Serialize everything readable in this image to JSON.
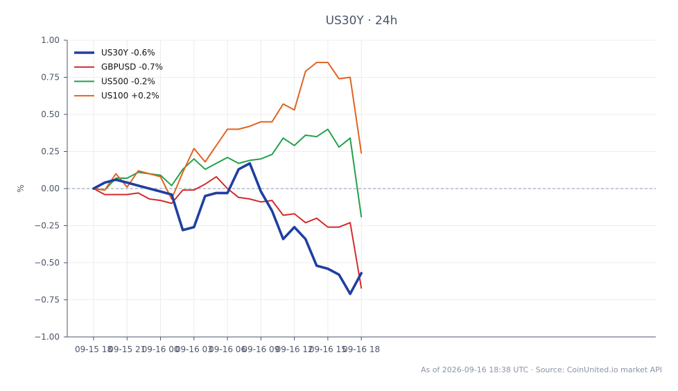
{
  "chart_data": {
    "type": "line",
    "title": "US30Y · 24h",
    "xlabel": "",
    "ylabel": "%",
    "ylim": [
      -1.0,
      1.0
    ],
    "yticks": [
      "1.00",
      "0.75",
      "0.50",
      "0.25",
      "0.00",
      "−0.25",
      "−0.50",
      "−0.75",
      "−1.00"
    ],
    "xticks": [
      "09-15 18",
      "09-15 21",
      "09-16 00",
      "09-16 03",
      "09-16 06",
      "09-16 09",
      "09-16 12",
      "09-16 15",
      "09-16 18"
    ],
    "x_hours": [
      "09-15 18",
      "09-15 19",
      "09-15 20",
      "09-15 21",
      "09-15 22",
      "09-15 23",
      "09-16 00",
      "09-16 01",
      "09-16 02",
      "09-16 03",
      "09-16 04",
      "09-16 05",
      "09-16 06",
      "09-16 07",
      "09-16 08",
      "09-16 09",
      "09-16 10",
      "09-16 11",
      "09-16 12",
      "09-16 13",
      "09-16 14",
      "09-16 15",
      "09-16 16",
      "09-16 17",
      "09-16 18"
    ],
    "grid": true,
    "zero_line": true,
    "legend_position": "top-left",
    "series": [
      {
        "name": "US30Y -0.6%",
        "color": "#1f3fa0",
        "values": [
          0.0,
          0.04,
          0.06,
          0.04,
          0.02,
          0.0,
          -0.02,
          -0.04,
          -0.28,
          -0.26,
          -0.05,
          -0.03,
          -0.03,
          0.13,
          0.17,
          -0.02,
          -0.15,
          -0.34,
          -0.26,
          -0.34,
          -0.52,
          -0.54,
          -0.58,
          -0.71,
          -0.57
        ]
      },
      {
        "name": "GBPUSD -0.7%",
        "color": "#d22b2b",
        "values": [
          0.0,
          -0.04,
          -0.04,
          -0.04,
          -0.03,
          -0.07,
          -0.08,
          -0.1,
          -0.01,
          -0.01,
          0.03,
          0.08,
          0.0,
          -0.06,
          -0.07,
          -0.09,
          -0.08,
          -0.18,
          -0.17,
          -0.23,
          -0.2,
          -0.26,
          -0.26,
          -0.23,
          -0.67
        ]
      },
      {
        "name": "US500 -0.2%",
        "color": "#22a04b",
        "values": [
          0.0,
          -0.01,
          0.07,
          0.07,
          0.11,
          0.1,
          0.09,
          0.02,
          0.13,
          0.2,
          0.13,
          0.17,
          0.21,
          0.17,
          0.19,
          0.2,
          0.23,
          0.34,
          0.29,
          0.36,
          0.35,
          0.4,
          0.28,
          0.34,
          -0.19
        ]
      },
      {
        "name": "US100 +0.2%",
        "color": "#e0631f",
        "values": [
          0.0,
          -0.01,
          0.1,
          0.01,
          0.12,
          0.1,
          0.08,
          -0.07,
          0.11,
          0.27,
          0.18,
          0.29,
          0.4,
          0.4,
          0.42,
          0.45,
          0.45,
          0.57,
          0.53,
          0.79,
          0.85,
          0.85,
          0.74,
          0.75,
          0.24
        ]
      }
    ]
  },
  "footer": "As of 2026-09-16 18:38 UTC · Source: CoinUnited.io market API"
}
